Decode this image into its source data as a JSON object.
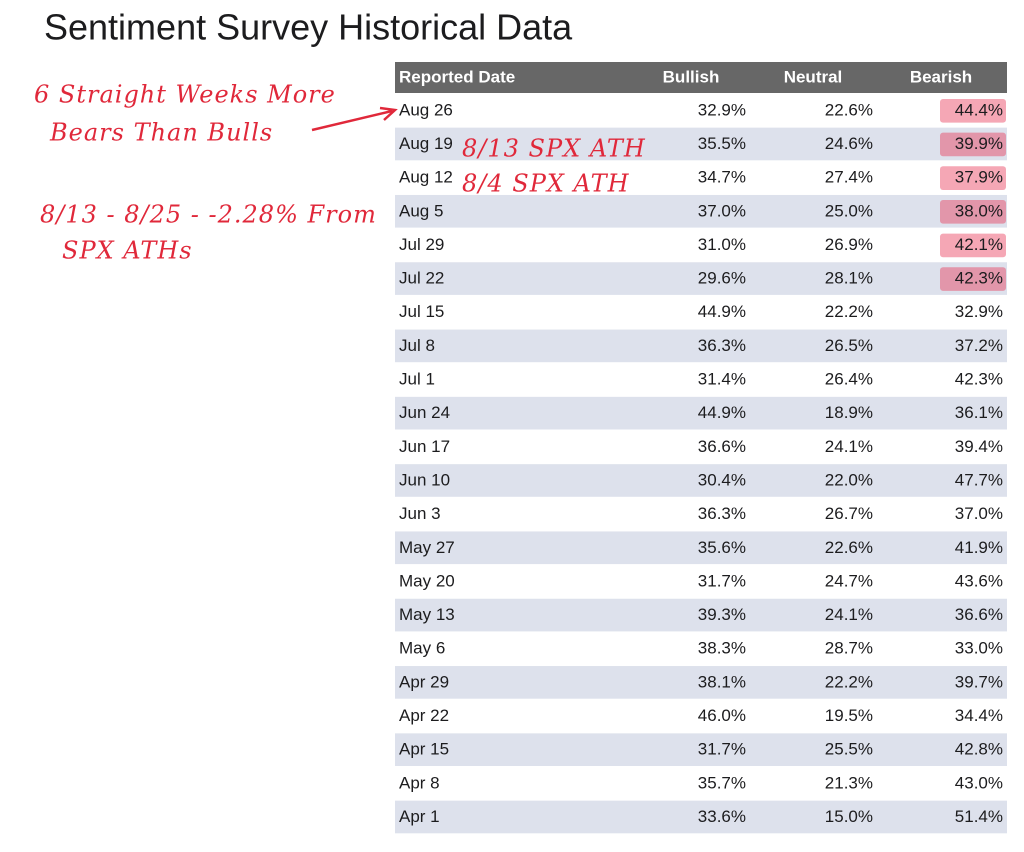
{
  "header": {
    "title": "Sentiment Survey Historical Data"
  },
  "table": {
    "columns": [
      "Reported Date",
      "Bullish",
      "Neutral",
      "Bearish"
    ],
    "rows": [
      {
        "date": "Aug 26",
        "bullish": "32.9%",
        "neutral": "22.6%",
        "bearish": "44.4%",
        "highlight": true
      },
      {
        "date": "Aug 19",
        "bullish": "35.5%",
        "neutral": "24.6%",
        "bearish": "39.9%",
        "highlight": true
      },
      {
        "date": "Aug 12",
        "bullish": "34.7%",
        "neutral": "27.4%",
        "bearish": "37.9%",
        "highlight": true
      },
      {
        "date": "Aug 5",
        "bullish": "37.0%",
        "neutral": "25.0%",
        "bearish": "38.0%",
        "highlight": true
      },
      {
        "date": "Jul 29",
        "bullish": "31.0%",
        "neutral": "26.9%",
        "bearish": "42.1%",
        "highlight": true
      },
      {
        "date": "Jul 22",
        "bullish": "29.6%",
        "neutral": "28.1%",
        "bearish": "42.3%",
        "highlight": true
      },
      {
        "date": "Jul 15",
        "bullish": "44.9%",
        "neutral": "22.2%",
        "bearish": "32.9%",
        "highlight": false
      },
      {
        "date": "Jul 8",
        "bullish": "36.3%",
        "neutral": "26.5%",
        "bearish": "37.2%",
        "highlight": false
      },
      {
        "date": "Jul 1",
        "bullish": "31.4%",
        "neutral": "26.4%",
        "bearish": "42.3%",
        "highlight": false
      },
      {
        "date": "Jun 24",
        "bullish": "44.9%",
        "neutral": "18.9%",
        "bearish": "36.1%",
        "highlight": false
      },
      {
        "date": "Jun 17",
        "bullish": "36.6%",
        "neutral": "24.1%",
        "bearish": "39.4%",
        "highlight": false
      },
      {
        "date": "Jun 10",
        "bullish": "30.4%",
        "neutral": "22.0%",
        "bearish": "47.7%",
        "highlight": false
      },
      {
        "date": "Jun 3",
        "bullish": "36.3%",
        "neutral": "26.7%",
        "bearish": "37.0%",
        "highlight": false
      },
      {
        "date": "May 27",
        "bullish": "35.6%",
        "neutral": "22.6%",
        "bearish": "41.9%",
        "highlight": false
      },
      {
        "date": "May 20",
        "bullish": "31.7%",
        "neutral": "24.7%",
        "bearish": "43.6%",
        "highlight": false
      },
      {
        "date": "May 13",
        "bullish": "39.3%",
        "neutral": "24.1%",
        "bearish": "36.6%",
        "highlight": false
      },
      {
        "date": "May 6",
        "bullish": "38.3%",
        "neutral": "28.7%",
        "bearish": "33.0%",
        "highlight": false
      },
      {
        "date": "Apr 29",
        "bullish": "38.1%",
        "neutral": "22.2%",
        "bearish": "39.7%",
        "highlight": false
      },
      {
        "date": "Apr 22",
        "bullish": "46.0%",
        "neutral": "19.5%",
        "bearish": "34.4%",
        "highlight": false
      },
      {
        "date": "Apr 15",
        "bullish": "31.7%",
        "neutral": "25.5%",
        "bearish": "42.8%",
        "highlight": false
      },
      {
        "date": "Apr 8",
        "bullish": "35.7%",
        "neutral": "21.3%",
        "bearish": "43.0%",
        "highlight": false
      },
      {
        "date": "Apr 1",
        "bullish": "33.6%",
        "neutral": "15.0%",
        "bearish": "51.4%",
        "highlight": false
      }
    ]
  },
  "annotations": [
    "6 Straight Weeks More",
    "Bears Than Bulls",
    "8/13 SPX ATH",
    "8/4 SPX ATH",
    "8/13 - 8/25 - -2.28% From",
    "SPX ATHs"
  ]
}
